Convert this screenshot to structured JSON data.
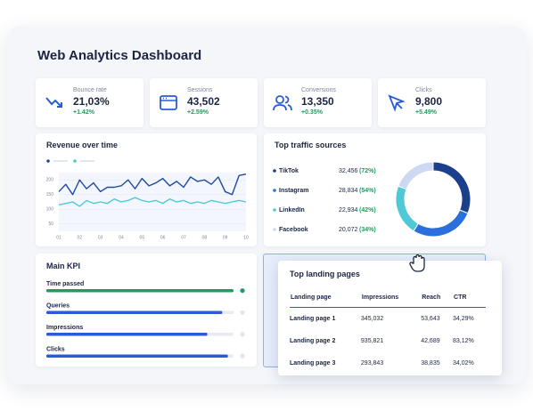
{
  "header": {
    "title": "Web Analytics Dashboard"
  },
  "kpis": [
    {
      "label": "Bounce rate",
      "value": "21,03%",
      "change": "+1.42%"
    },
    {
      "label": "Sessions",
      "value": "43,502",
      "change": "+2.59%"
    },
    {
      "label": "Conversions",
      "value": "13,350",
      "change": "+0.35%"
    },
    {
      "label": "Clicks",
      "value": "9,800",
      "change": "+5.49%"
    }
  ],
  "chart_data": [
    {
      "type": "line",
      "title": "Revenue over time",
      "categories": [
        "01",
        null,
        null,
        "02",
        null,
        null,
        "03",
        null,
        null,
        "04",
        null,
        null,
        "05",
        null,
        null,
        "06",
        null,
        null,
        "07",
        null,
        null,
        "08",
        null,
        null,
        "09",
        null,
        null,
        "10"
      ],
      "series": [
        {
          "color": "#1f4a9e",
          "values": [
            160,
            185,
            150,
            200,
            170,
            190,
            160,
            175,
            175,
            180,
            200,
            170,
            205,
            180,
            190,
            205,
            180,
            195,
            175,
            210,
            195,
            200,
            185,
            210,
            160,
            150,
            215,
            220
          ]
        },
        {
          "color": "#4fc9d8",
          "values": [
            115,
            120,
            125,
            110,
            130,
            120,
            125,
            120,
            135,
            125,
            130,
            140,
            130,
            125,
            130,
            120,
            135,
            125,
            130,
            120,
            125,
            120,
            130,
            125,
            120,
            125,
            130,
            125
          ]
        }
      ],
      "ylim": [
        25,
        225
      ],
      "yticks": [
        50,
        100,
        150,
        200
      ],
      "grid": true
    },
    {
      "type": "donut",
      "title": "Top traffic sources",
      "categories": [
        "TikTok",
        "Instagram",
        "LinkedIn",
        "Facebook"
      ],
      "values": [
        32456,
        28834,
        22934,
        20072
      ],
      "value_labels": [
        "32,456",
        "28,834",
        "22,934",
        "20,072"
      ],
      "percent_labels": [
        "(72%)",
        "(54%)",
        "(42%)",
        "(34%)"
      ],
      "colors": [
        "#1c3f8c",
        "#2a6fdb",
        "#4fc9d8",
        "#cdd8f2"
      ]
    },
    {
      "type": "progress",
      "title": "Main KPI",
      "categories": [
        "Time passed",
        "Queries",
        "Impressions",
        "Clicks"
      ],
      "values": [
        100,
        94,
        86,
        97
      ],
      "xlim": [
        0,
        100
      ],
      "colors": [
        "#1f9d60",
        "#2a5bd7",
        "#2a5bd7",
        "#2a5bd7"
      ]
    }
  ],
  "table": {
    "title": "Top landing pages",
    "columns": [
      "Landing page",
      "Impressions",
      "Reach",
      "CTR"
    ],
    "rows": [
      [
        "Landing page 1",
        "345,032",
        "53,643",
        "34,29%"
      ],
      [
        "Landing page 2",
        "935,821",
        "42,689",
        "83,12%"
      ],
      [
        "Landing page 3",
        "293,843",
        "38,835",
        "34,02%"
      ]
    ]
  }
}
